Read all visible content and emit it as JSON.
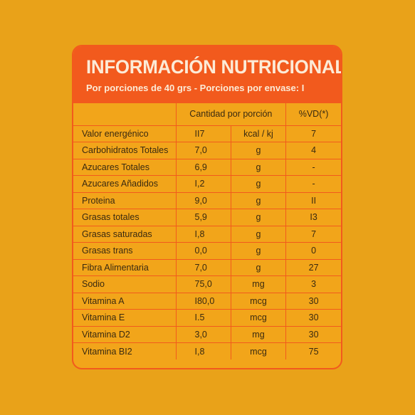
{
  "header": {
    "title": "INFORMACIÓN NUTRICIONAL",
    "subtitle": "Por porciones de 40 grs - Porciones por envase: I"
  },
  "table": {
    "columns": {
      "name": "",
      "quantity": "Cantidad por porción",
      "vd": "%VD(*)"
    },
    "rows": [
      {
        "name": "Valor energénico",
        "amount": "II7",
        "unit": "kcal / kj",
        "vd": "7"
      },
      {
        "name": "Carbohidratos Totales",
        "amount": "7,0",
        "unit": "g",
        "vd": "4"
      },
      {
        "name": "Azucares Totales",
        "amount": "6,9",
        "unit": "g",
        "vd": "-"
      },
      {
        "name": "Azucares Añadidos",
        "amount": "I,2",
        "unit": "g",
        "vd": "-"
      },
      {
        "name": "Proteina",
        "amount": "9,0",
        "unit": "g",
        "vd": "II"
      },
      {
        "name": "Grasas totales",
        "amount": "5,9",
        "unit": "g",
        "vd": "I3"
      },
      {
        "name": "Grasas saturadas",
        "amount": "I,8",
        "unit": "g",
        "vd": "7"
      },
      {
        "name": "Grasas trans",
        "amount": "0,0",
        "unit": "g",
        "vd": "0"
      },
      {
        "name": "Fibra Alimentaria",
        "amount": "7,0",
        "unit": "g",
        "vd": "27"
      },
      {
        "name": "Sodio",
        "amount": "75,0",
        "unit": "mg",
        "vd": "3"
      },
      {
        "name": "Vitamina A",
        "amount": "I80,0",
        "unit": "mcg",
        "vd": "30"
      },
      {
        "name": "Vitamina E",
        "amount": "I.5",
        "unit": "mcg",
        "vd": "30"
      },
      {
        "name": "Vitamina D2",
        "amount": "3,0",
        "unit": "mg",
        "vd": "30"
      },
      {
        "name": "Vitamina BI2",
        "amount": "I,8",
        "unit": "mcg",
        "vd": "75"
      }
    ]
  },
  "colors": {
    "background": "#E9A219",
    "panel": "#F2A51A",
    "accent": "#F25A1D",
    "title_text": "#FCEBD7"
  }
}
